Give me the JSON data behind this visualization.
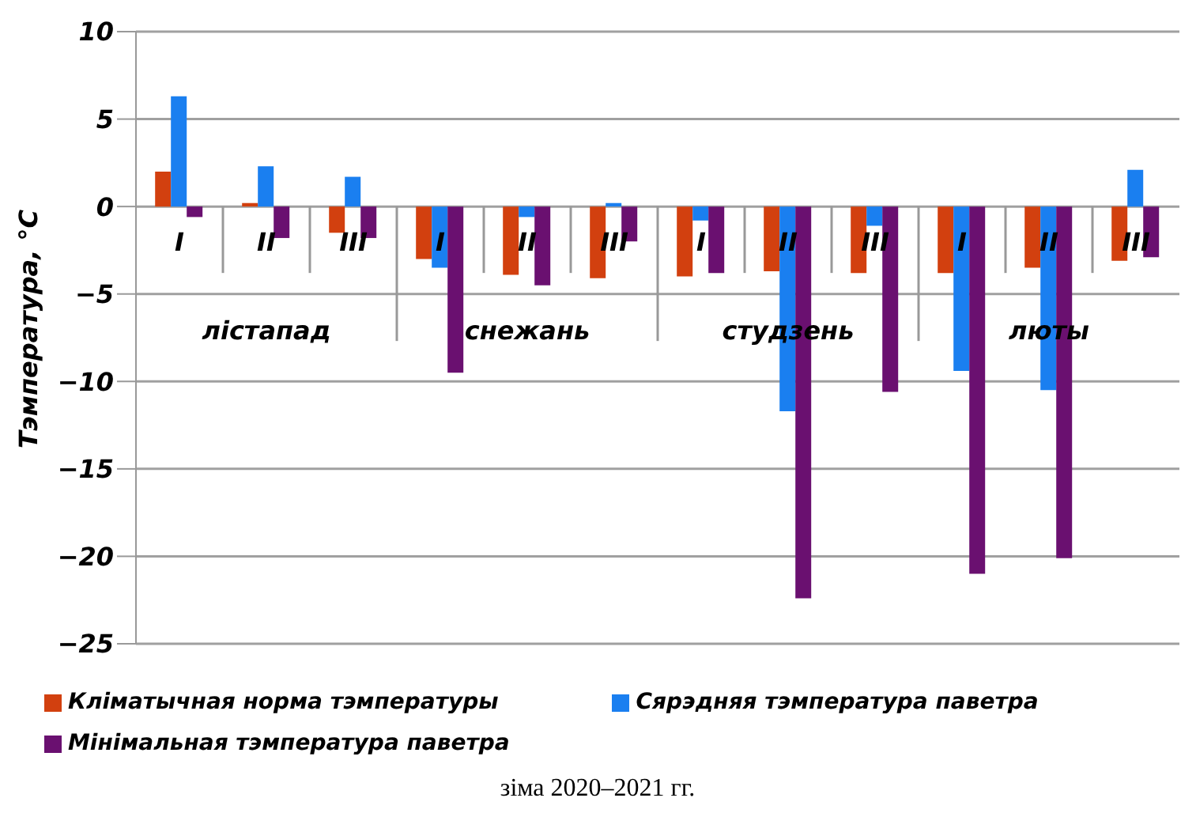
{
  "chart_data": {
    "type": "bar",
    "categories": [
      "I",
      "II",
      "III",
      "I",
      "II",
      "III",
      "I",
      "II",
      "III",
      "I",
      "II",
      "III"
    ],
    "annotations": [
      "лістапад",
      "снежань",
      "студзень",
      "люты",
      "зіма 2020–2021 гг."
    ],
    "ylabel": "Тэмпература, °C",
    "series": [
      {
        "name": "Кліматычная норма тэмпературы",
        "color": "#d2400f",
        "values": [
          2.0,
          0.2,
          -1.5,
          -3.0,
          -3.9,
          -4.1,
          -4.0,
          -3.7,
          -3.8,
          -3.8,
          -3.5,
          -3.1
        ]
      },
      {
        "name": "Сярэдняя тэмпература паветра",
        "color": "#1a7ff0",
        "values": [
          6.3,
          2.3,
          1.7,
          -3.5,
          -0.6,
          0.2,
          -0.8,
          -11.7,
          -1.1,
          -9.4,
          -10.5,
          2.1
        ]
      },
      {
        "name": "Мінімальная тэмпература паветра",
        "color": "#6a1070",
        "values": [
          -0.6,
          -1.8,
          -1.8,
          -9.5,
          -4.5,
          -2.0,
          -3.8,
          -22.4,
          -10.6,
          -21.0,
          -20.1,
          -2.9
        ]
      }
    ],
    "ylim": [
      -25,
      10
    ],
    "yticks": [
      -25,
      -20,
      -15,
      -10,
      -5,
      0,
      5,
      10
    ],
    "grid": "y",
    "legend": "bottom"
  }
}
